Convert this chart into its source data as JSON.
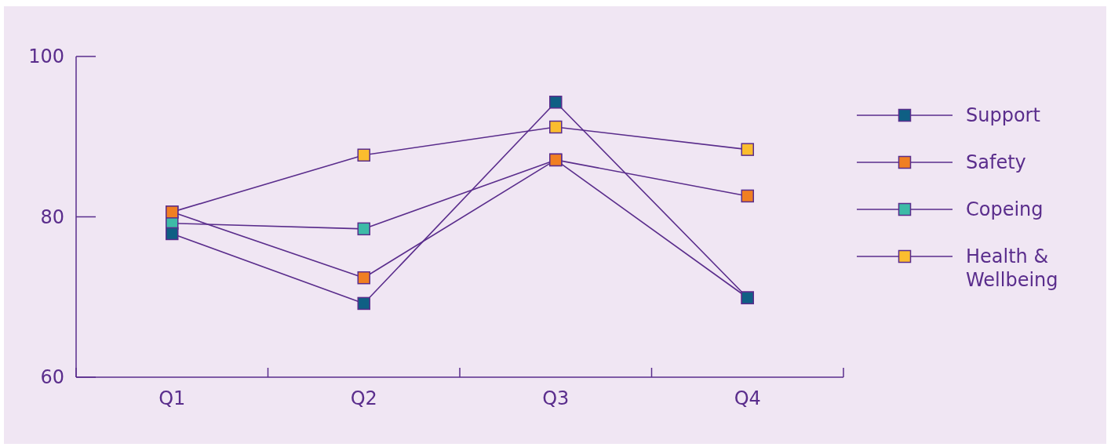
{
  "chart_data": {
    "type": "line",
    "categories": [
      "Q1",
      "Q2",
      "Q3",
      "Q4"
    ],
    "series": [
      {
        "name": "Support",
        "color": "#0f5f84",
        "values": [
          77.9,
          69.2,
          94.3,
          69.9
        ]
      },
      {
        "name": "Safety",
        "color": "#f07f22",
        "values": [
          80.6,
          72.4,
          87.1,
          82.6
        ]
      },
      {
        "name": "Copeing",
        "color": "#3dbba7",
        "values": [
          79.2,
          78.5,
          87.1,
          69.9
        ]
      },
      {
        "name": "Health & Wellbeing",
        "color": "#fbbd2e",
        "values": [
          80.6,
          87.7,
          91.2,
          88.4
        ]
      }
    ],
    "ylim": [
      60,
      100
    ],
    "yticks": [
      60,
      80,
      100
    ],
    "grid": false,
    "legend": "right",
    "marker": "square",
    "line_style": "solid"
  }
}
